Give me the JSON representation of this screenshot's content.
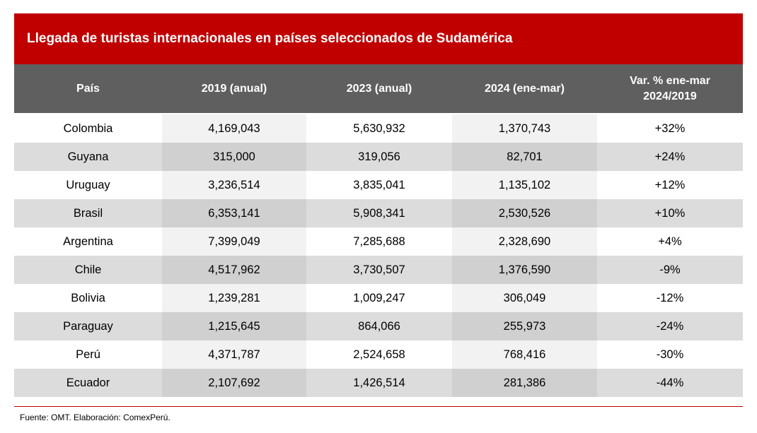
{
  "title": "Llegada de turistas internacionales en países seleccionados de Sudamérica",
  "source": "Fuente: OMT. Elaboración: ComexPerú.",
  "colors": {
    "title_bg": "#c00000",
    "header_bg": "#5f5f5f",
    "rule": "#c00000"
  },
  "chart_data": {
    "type": "table",
    "title": "Llegada de turistas internacionales en países seleccionados de Sudamérica",
    "columns": [
      "País",
      "2019 (anual)",
      "2023 (anual)",
      "2024 (ene-mar)",
      "Var. % ene-mar\n2024/2019"
    ],
    "rows": [
      [
        "Colombia",
        "4,169,043",
        "5,630,932",
        "1,370,743",
        "+32%"
      ],
      [
        "Guyana",
        "315,000",
        "319,056",
        "82,701",
        "+24%"
      ],
      [
        "Uruguay",
        "3,236,514",
        "3,835,041",
        "1,135,102",
        "+12%"
      ],
      [
        "Brasil",
        "6,353,141",
        "5,908,341",
        "2,530,526",
        "+10%"
      ],
      [
        "Argentina",
        "7,399,049",
        "7,285,688",
        "2,328,690",
        "+4%"
      ],
      [
        "Chile",
        "4,517,962",
        "3,730,507",
        "1,376,590",
        "-9%"
      ],
      [
        "Bolivia",
        "1,239,281",
        "1,009,247",
        "306,049",
        "-12%"
      ],
      [
        "Paraguay",
        "1,215,645",
        "864,066",
        "255,973",
        "-24%"
      ],
      [
        "Perú",
        "4,371,787",
        "2,524,658",
        "768,416",
        "-30%"
      ],
      [
        "Ecuador",
        "2,107,692",
        "1,426,514",
        "281,386",
        "-44%"
      ]
    ]
  }
}
